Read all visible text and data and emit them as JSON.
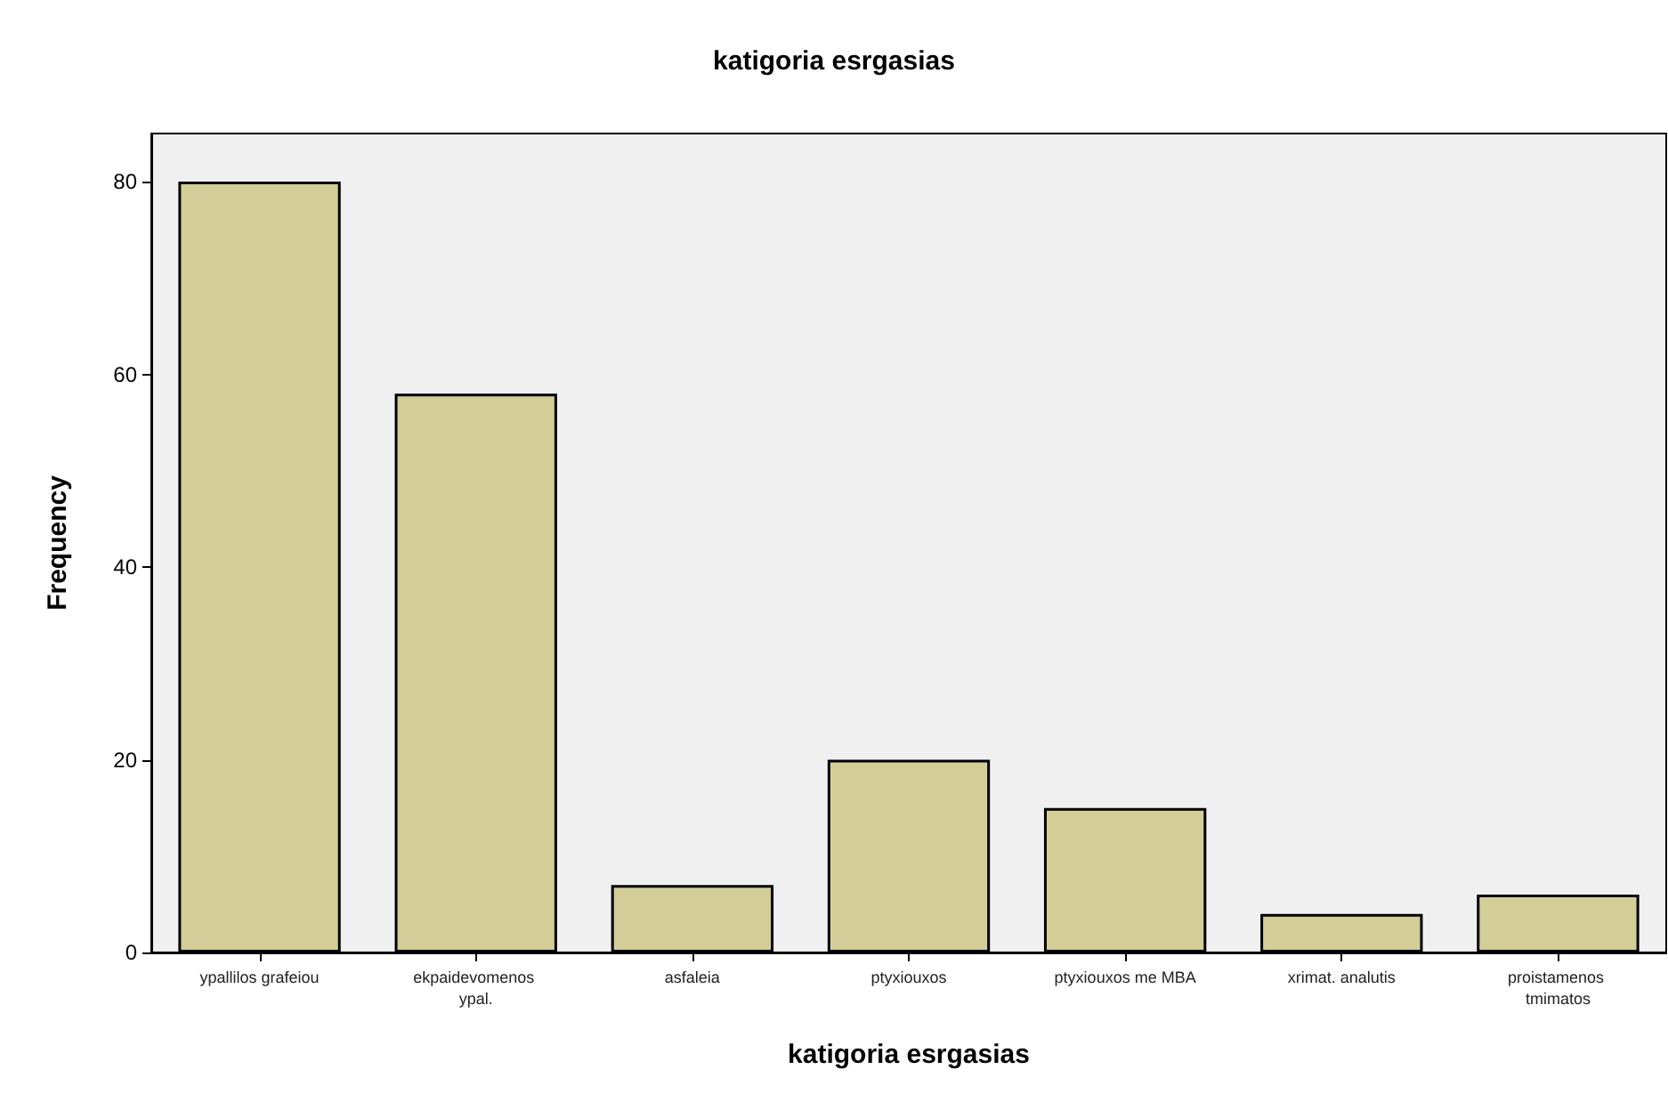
{
  "chart_data": {
    "type": "bar",
    "title": "katigoria esrgasias",
    "xlabel": "katigoria esrgasias",
    "ylabel": "Frequency",
    "categories": [
      "ypallilos grafeiou",
      "ekpaidevomenos ypal.",
      "asfaleia",
      "ptyxiouxos",
      "ptyxiouxos me MBA",
      "xrimat. analutis",
      "proistamenos tmimatos"
    ],
    "values": [
      80,
      58,
      7,
      20,
      15,
      4,
      6
    ],
    "color": "#d3ce97",
    "ylim": [
      0,
      85
    ],
    "yticks": [
      0,
      20,
      40,
      60,
      80
    ],
    "grid": false
  }
}
